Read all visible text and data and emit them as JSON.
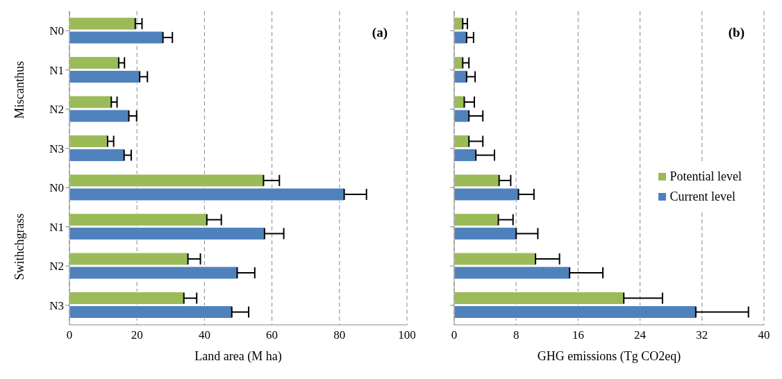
{
  "chart_data": [
    {
      "type": "bar",
      "orientation": "horizontal",
      "title": "(a)",
      "xlabel": "Land area (M ha)",
      "categories": [
        "N0",
        "N1",
        "N2",
        "N3",
        "N0",
        "N1",
        "N2",
        "N3"
      ],
      "annotations": [
        "Miscanthus",
        "Swithchgrass"
      ],
      "series": [
        {
          "color": "#9bbb59",
          "values": [
            19.5,
            14.6,
            12.4,
            11.3,
            57.5,
            40.7,
            35.1,
            33.9
          ],
          "errors": [
            [
              19.5,
              21.5
            ],
            [
              14.6,
              16.3
            ],
            [
              12.4,
              14.1
            ],
            [
              11.3,
              13.1
            ],
            [
              57.5,
              62.2
            ],
            [
              40.7,
              45.0
            ],
            [
              35.1,
              38.8
            ],
            [
              33.9,
              37.7
            ]
          ]
        },
        {
          "color": "#4f81bd",
          "values": [
            27.7,
            20.8,
            17.6,
            16.2,
            81.4,
            57.8,
            49.7,
            48.1
          ],
          "errors": [
            [
              27.7,
              30.5
            ],
            [
              20.8,
              23.1
            ],
            [
              17.6,
              19.9
            ],
            [
              16.2,
              18.3
            ],
            [
              81.4,
              88.0
            ],
            [
              57.8,
              63.5
            ],
            [
              49.7,
              54.9
            ],
            [
              48.1,
              53.1
            ]
          ]
        }
      ],
      "xlim": [
        0,
        100
      ],
      "xticks": [
        0,
        20,
        40,
        60,
        80,
        100
      ],
      "grid": "x",
      "legend": false
    },
    {
      "type": "bar",
      "orientation": "horizontal",
      "title": "(b)",
      "xlabel": "GHG emissions (Tg CO2eq)",
      "categories": [
        null,
        null,
        null,
        null,
        null,
        null,
        null,
        null
      ],
      "series": [
        {
          "name": "Potential level",
          "color": "#9bbb59",
          "values": [
            1.1,
            1.1,
            1.3,
            1.9,
            5.8,
            5.7,
            10.5,
            21.9
          ],
          "errors": [
            [
              1.1,
              1.7
            ],
            [
              1.1,
              1.9
            ],
            [
              1.3,
              2.6
            ],
            [
              1.9,
              3.7
            ],
            [
              5.8,
              7.3
            ],
            [
              5.7,
              7.6
            ],
            [
              10.5,
              13.6
            ],
            [
              21.9,
              26.9
            ]
          ]
        },
        {
          "name": "Current level",
          "color": "#4f81bd",
          "values": [
            1.6,
            1.6,
            1.9,
            2.8,
            8.3,
            8.0,
            14.9,
            31.2
          ],
          "errors": [
            [
              1.6,
              2.5
            ],
            [
              1.6,
              2.7
            ],
            [
              1.9,
              3.7
            ],
            [
              2.8,
              5.2
            ],
            [
              8.3,
              10.3
            ],
            [
              8.0,
              10.8
            ],
            [
              14.9,
              19.2
            ],
            [
              31.2,
              38.0
            ]
          ]
        }
      ],
      "xlim": [
        0,
        40
      ],
      "xticks": [
        0,
        8,
        16,
        24,
        32,
        40
      ],
      "grid": "x",
      "legend": "right"
    }
  ]
}
